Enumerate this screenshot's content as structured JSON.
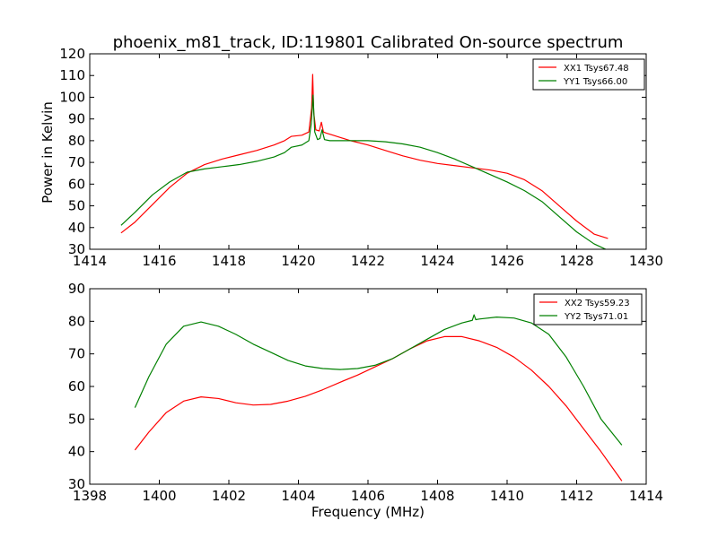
{
  "chart_data": [
    {
      "type": "line",
      "title": "phoenix_m81_track, ID:119801 Calibrated On-source spectrum",
      "xlabel": "",
      "ylabel": "Power in Kelvin",
      "xlim": [
        1414,
        1430
      ],
      "ylim": [
        30,
        120
      ],
      "xticks": [
        1414,
        1416,
        1418,
        1420,
        1422,
        1424,
        1426,
        1428,
        1430
      ],
      "yticks": [
        30,
        40,
        50,
        60,
        70,
        80,
        90,
        100,
        110,
        120
      ],
      "legend_position": "top-right",
      "series": [
        {
          "name": "XX1 Tsys67.48",
          "color": "#ff0000",
          "x": [
            1414.9,
            1415.3,
            1415.8,
            1416.3,
            1416.8,
            1417.3,
            1417.8,
            1418.3,
            1418.8,
            1419.3,
            1419.6,
            1419.8,
            1420.1,
            1420.3,
            1420.38,
            1420.41,
            1420.44,
            1420.5,
            1420.6,
            1420.66,
            1420.72,
            1420.8,
            1421.0,
            1421.5,
            1422.0,
            1422.5,
            1423.0,
            1423.5,
            1424.0,
            1424.5,
            1425.0,
            1425.5,
            1426.0,
            1426.5,
            1427.0,
            1427.5,
            1428.0,
            1428.5,
            1428.9
          ],
          "values": [
            37.5,
            42.5,
            50.5,
            58.5,
            65,
            69,
            71.5,
            73.5,
            75.5,
            78,
            80,
            82,
            82.5,
            84,
            95,
            110.5,
            93,
            85,
            84.5,
            88.5,
            84,
            83.5,
            82.5,
            80,
            78,
            75.5,
            73,
            71,
            69.5,
            68.5,
            67.5,
            66.5,
            65,
            62,
            57,
            50,
            43,
            37,
            35
          ]
        },
        {
          "name": "YY1 Tsys66.00",
          "color": "#008000",
          "x": [
            1414.9,
            1415.3,
            1415.8,
            1416.3,
            1416.8,
            1417.3,
            1417.8,
            1418.3,
            1418.8,
            1419.3,
            1419.6,
            1419.8,
            1420.1,
            1420.3,
            1420.37,
            1420.42,
            1420.47,
            1420.55,
            1420.62,
            1420.68,
            1420.75,
            1420.9,
            1421.5,
            1422.0,
            1422.5,
            1423.0,
            1423.5,
            1424.0,
            1424.5,
            1425.0,
            1425.5,
            1426.0,
            1426.5,
            1427.0,
            1427.5,
            1428.0,
            1428.5,
            1428.9
          ],
          "values": [
            41,
            47,
            55,
            61,
            65.5,
            67,
            68,
            69,
            70.5,
            72.5,
            74.5,
            77,
            78,
            80,
            88,
            101,
            84,
            80.5,
            81,
            85,
            80.5,
            80,
            80,
            80,
            79.5,
            78.5,
            77,
            74.5,
            71.5,
            68,
            64.5,
            61,
            57,
            52,
            45,
            38,
            32.5,
            29.5
          ]
        }
      ]
    },
    {
      "type": "line",
      "title": "",
      "xlabel": "Frequency (MHz)",
      "ylabel": "",
      "xlim": [
        1398,
        1414
      ],
      "ylim": [
        30,
        90
      ],
      "xticks": [
        1398,
        1400,
        1402,
        1404,
        1406,
        1408,
        1410,
        1412,
        1414
      ],
      "yticks": [
        30,
        40,
        50,
        60,
        70,
        80,
        90
      ],
      "legend_position": "top-right",
      "series": [
        {
          "name": "XX2 Tsys59.23",
          "color": "#ff0000",
          "x": [
            1399.3,
            1399.7,
            1400.2,
            1400.7,
            1401.2,
            1401.7,
            1402.2,
            1402.7,
            1403.2,
            1403.7,
            1404.2,
            1404.7,
            1405.2,
            1405.7,
            1406.2,
            1406.7,
            1407.2,
            1407.7,
            1408.2,
            1408.7,
            1409.2,
            1409.7,
            1410.2,
            1410.7,
            1411.2,
            1411.7,
            1412.2,
            1412.7,
            1413.3
          ],
          "values": [
            40.5,
            46,
            52,
            55.5,
            56.8,
            56.3,
            55,
            54.3,
            54.5,
            55.5,
            57,
            59,
            61.3,
            63.5,
            66,
            68.5,
            71.5,
            74,
            75.3,
            75.3,
            74,
            72,
            69,
            65,
            60,
            54,
            47,
            40,
            31
          ]
        },
        {
          "name": "YY2 Tsys71.01",
          "color": "#008000",
          "x": [
            1399.3,
            1399.7,
            1400.2,
            1400.7,
            1401.2,
            1401.7,
            1402.2,
            1402.7,
            1403.2,
            1403.7,
            1404.2,
            1404.7,
            1405.2,
            1405.7,
            1406.2,
            1406.7,
            1407.2,
            1407.7,
            1408.2,
            1408.7,
            1409.0,
            1409.05,
            1409.1,
            1409.2,
            1409.7,
            1410.2,
            1410.7,
            1411.2,
            1411.7,
            1412.2,
            1412.7,
            1413.3
          ],
          "values": [
            53.5,
            63,
            73,
            78.5,
            79.8,
            78.5,
            76,
            73,
            70.5,
            68,
            66.3,
            65.5,
            65.2,
            65.5,
            66.5,
            68.5,
            71.5,
            74.5,
            77.5,
            79.5,
            80.3,
            82,
            80.5,
            80.7,
            81.3,
            81,
            79.5,
            76,
            69,
            60,
            50,
            42
          ]
        }
      ]
    }
  ]
}
